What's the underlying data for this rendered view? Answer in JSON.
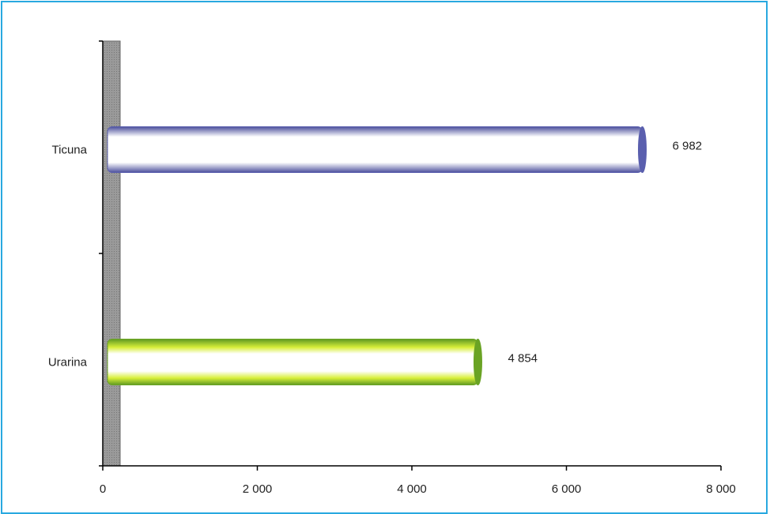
{
  "chart_data": {
    "type": "bar",
    "orientation": "horizontal",
    "categories": [
      "Ticuna",
      "Urarina"
    ],
    "values": [
      6982,
      4854
    ],
    "value_labels": [
      "6 982",
      "4 854"
    ],
    "xlim": [
      0,
      8000
    ],
    "x_ticks": [
      0,
      2000,
      4000,
      6000,
      8000
    ],
    "x_tick_labels": [
      "0",
      "2 000",
      "4 000",
      "6 000",
      "8 000"
    ],
    "bar_colors": [
      "#5a5fae",
      "#6aa324"
    ],
    "grid": false,
    "legend": "none"
  }
}
